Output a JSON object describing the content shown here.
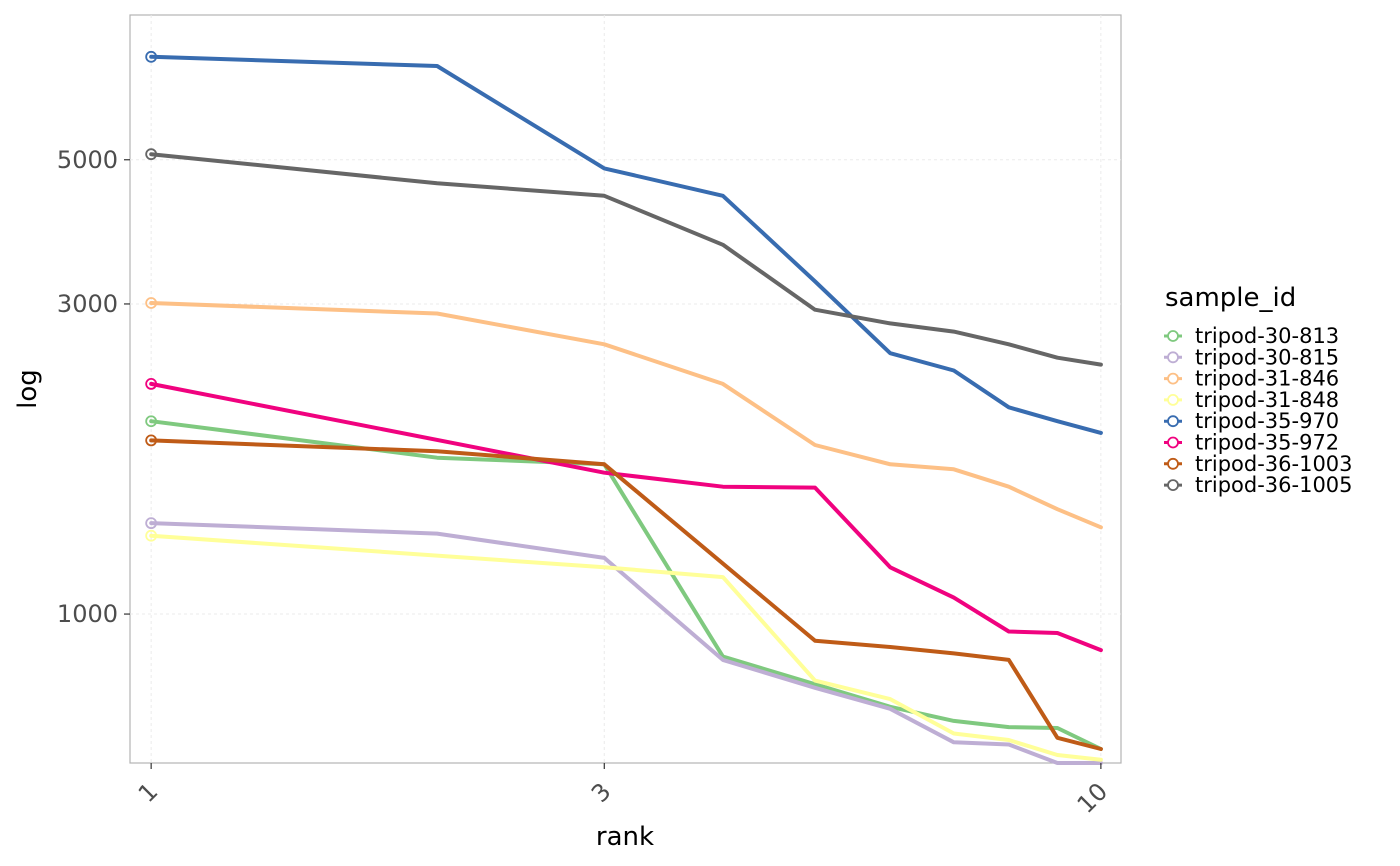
{
  "chart_data": {
    "type": "line",
    "xlabel": "rank",
    "ylabel": "log",
    "x_scale": "log10",
    "y_scale": "log10",
    "xlim": [
      0.95,
      10.5
    ],
    "ylim": [
      590,
      8350
    ],
    "x_ticks": [
      1,
      3,
      10
    ],
    "x_tick_labels": [
      "1",
      "3",
      "10"
    ],
    "y_ticks": [
      1000,
      3000,
      5000
    ],
    "y_tick_labels": [
      "1000",
      "3000",
      "5000"
    ],
    "grid": true,
    "legend": {
      "title": "sample_id",
      "position": "right"
    },
    "x": [
      1,
      2,
      3,
      4,
      5,
      6,
      7,
      8,
      9,
      10
    ],
    "series": [
      {
        "name": "tripod-30-813",
        "color": "#7fc97f",
        "values": [
          1980,
          1740,
          1700,
          860,
          null,
          720,
          685,
          670,
          668,
          620
        ]
      },
      {
        "name": "tripod-30-815",
        "color": "#beaed4",
        "values": [
          1380,
          1330,
          1220,
          850,
          770,
          715,
          635,
          630,
          590,
          590
        ]
      },
      {
        "name": "tripod-31-846",
        "color": "#fdc086",
        "values": [
          3010,
          2900,
          2600,
          2260,
          1820,
          1700,
          1670,
          1570,
          1450,
          1360
        ]
      },
      {
        "name": "tripod-31-848",
        "color": "#ffff99",
        "values": [
          1320,
          null,
          1180,
          1140,
          790,
          740,
          655,
          640,
          607,
          597
        ]
      },
      {
        "name": "tripod-35-970",
        "color": "#386cb0",
        "values": [
          7200,
          6970,
          4850,
          4400,
          3250,
          2520,
          2370,
          2080,
          1980,
          1900
        ]
      },
      {
        "name": "tripod-35-972",
        "color": "#f0027f",
        "values": [
          2260,
          null,
          1650,
          1570,
          1565,
          1180,
          1060,
          940,
          935,
          880
        ]
      },
      {
        "name": "tripod-36-1003",
        "color": "#bf5b17",
        "values": [
          1850,
          1780,
          1700,
          null,
          910,
          890,
          870,
          850,
          645,
          620
        ]
      },
      {
        "name": "tripod-36-1005",
        "color": "#666666",
        "values": [
          5100,
          4600,
          4400,
          3700,
          2940,
          2800,
          2720,
          2600,
          2480,
          2420
        ]
      }
    ]
  }
}
